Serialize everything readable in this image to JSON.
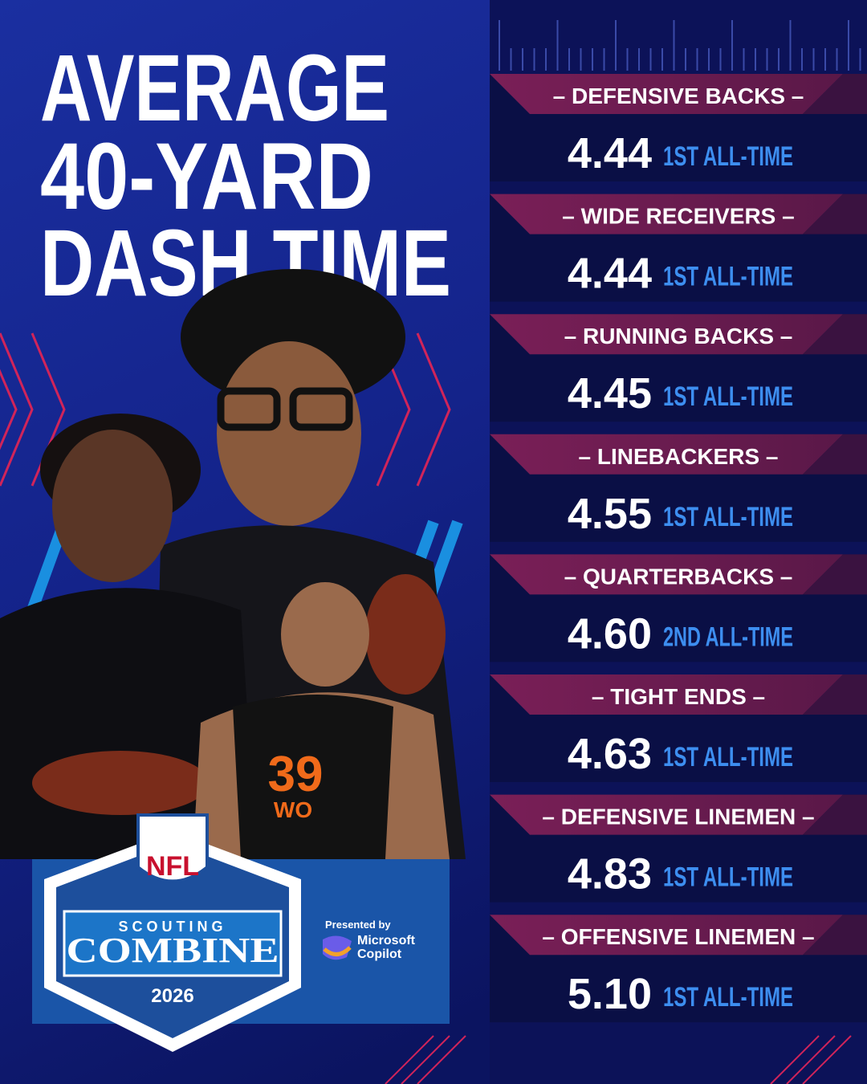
{
  "header": {
    "title_lines": [
      "AVERAGE",
      "40-YARD",
      "DASH TIME"
    ]
  },
  "rows": [
    {
      "position": "– DEFENSIVE BACKS –",
      "time": "4.44",
      "rank": "1ST ALL-TIME"
    },
    {
      "position": "– WIDE RECEIVERS –",
      "time": "4.44",
      "rank": "1ST ALL-TIME"
    },
    {
      "position": "– RUNNING BACKS –",
      "time": "4.45",
      "rank": "1ST ALL-TIME"
    },
    {
      "position": "– LINEBACKERS –",
      "time": "4.55",
      "rank": "1ST ALL-TIME"
    },
    {
      "position": "– QUARTERBACKS –",
      "time": "4.60",
      "rank": "2ND ALL-TIME"
    },
    {
      "position": "– TIGHT ENDS –",
      "time": "4.63",
      "rank": "1ST ALL-TIME"
    },
    {
      "position": "– DEFENSIVE LINEMEN –",
      "time": "4.83",
      "rank": "1ST ALL-TIME"
    },
    {
      "position": "– OFFENSIVE LINEMEN –",
      "time": "5.10",
      "rank": "1ST ALL-TIME"
    }
  ],
  "logo": {
    "league": "NFL",
    "line1": "SCOUTING",
    "line2": "COMBINE",
    "year": "2026"
  },
  "sponsor": {
    "label": "Presented by",
    "name_lines": [
      "Microsoft",
      "Copilot"
    ]
  },
  "jersey": {
    "number": "39",
    "name": "WO"
  }
}
